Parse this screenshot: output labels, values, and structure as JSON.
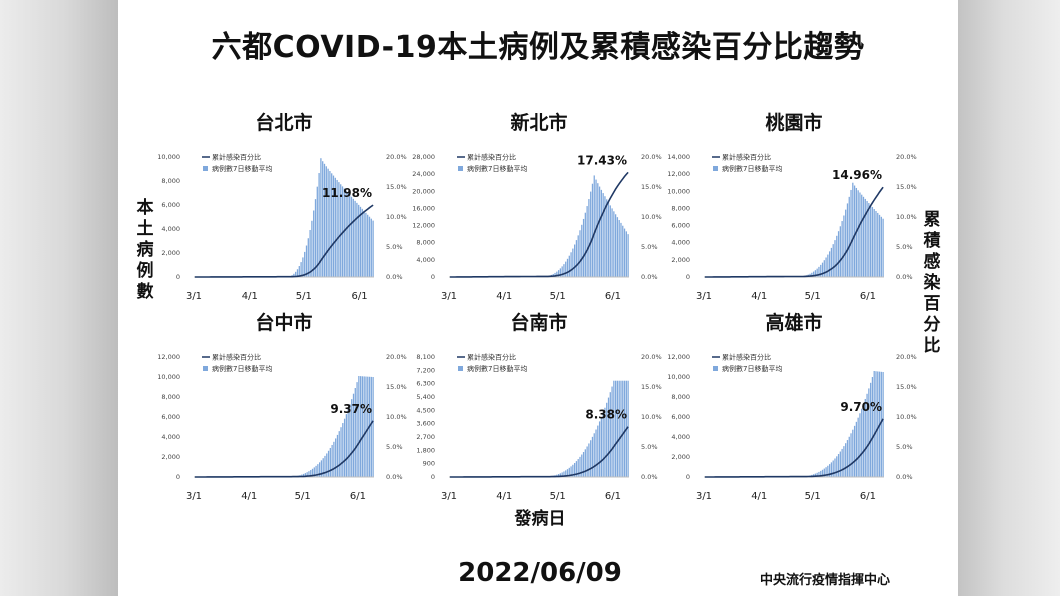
{
  "title": "六都COVID-19本土病例及累積感染百分比趨勢",
  "y_left_label": "本土病例數",
  "y_right_label": "累積感染百分比",
  "x_axis_label": "發病日",
  "date": "2022/06/09",
  "agency": "中央流行疫情指揮中心",
  "colors": {
    "bars": "#7fa8dc",
    "line": "#1f3864",
    "axis": "#bfbfbf"
  },
  "chart_data": [
    {
      "type": "bar",
      "name": "台北市",
      "legend": [
        "累計感染百分比",
        "病例數7日移動平均"
      ],
      "x_ticks": [
        "3/1",
        "4/1",
        "5/1",
        "6/1"
      ],
      "y_ticks": [
        "0",
        "2,000",
        "4,000",
        "6,000",
        "8,000",
        "10,000"
      ],
      "y_max": 10000,
      "y2_ticks": [
        "0.0%",
        "5.0%",
        "10.0%",
        "15.0%",
        "20.0%"
      ],
      "y2_max": 20,
      "final_percent": 11.98,
      "annotation": "11.98%",
      "bar_peak": 9900,
      "bar_peak_day": 70,
      "bar_end": 4700,
      "days": 100
    },
    {
      "type": "bar",
      "name": "新北市",
      "legend": [
        "累計感染百分比",
        "病例數7日移動平均"
      ],
      "x_ticks": [
        "3/1",
        "4/1",
        "5/1",
        "6/1"
      ],
      "y_ticks": [
        "0",
        "4,000",
        "8,000",
        "12,000",
        "16,000",
        "20,000",
        "24,000",
        "28,000"
      ],
      "y_max": 28000,
      "y2_ticks": [
        "0.0%",
        "5.0%",
        "10.0%",
        "15.0%",
        "20.0%"
      ],
      "y2_max": 20,
      "final_percent": 17.43,
      "annotation": "17.43%",
      "bar_peak": 23700,
      "bar_peak_day": 81,
      "bar_end": 10000,
      "days": 101
    },
    {
      "type": "bar",
      "name": "桃園市",
      "legend": [
        "累計感染百分比",
        "病例數7日移動平均"
      ],
      "x_ticks": [
        "3/1",
        "4/1",
        "5/1",
        "6/1"
      ],
      "y_ticks": [
        "0",
        "2,000",
        "4,000",
        "6,000",
        "8,000",
        "10,000",
        "12,000",
        "14,000"
      ],
      "y_max": 14000,
      "y2_ticks": [
        "0.0%",
        "5.0%",
        "10.0%",
        "15.0%",
        "20.0%"
      ],
      "y2_max": 20,
      "final_percent": 14.96,
      "annotation": "14.96%",
      "bar_peak": 11000,
      "bar_peak_day": 83,
      "bar_end": 6800,
      "days": 101
    },
    {
      "type": "bar",
      "name": "台中市",
      "legend": [
        "累計感染百分比",
        "病例數7日移動平均"
      ],
      "x_ticks": [
        "3/1",
        "4/1",
        "5/1",
        "6/1"
      ],
      "y_ticks": [
        "0",
        "2,000",
        "4,000",
        "6,000",
        "8,000",
        "10,000",
        "12,000"
      ],
      "y_max": 12000,
      "y2_ticks": [
        "0.0%",
        "5.0%",
        "10.0%",
        "15.0%",
        "20.0%"
      ],
      "y2_max": 20,
      "final_percent": 9.37,
      "annotation": "9.37%",
      "bar_peak": 10100,
      "bar_peak_day": 92,
      "bar_end": 10000,
      "days": 101
    },
    {
      "type": "bar",
      "name": "台南市",
      "legend": [
        "累計感染百分比",
        "病例數7日移動平均"
      ],
      "x_ticks": [
        "3/1",
        "4/1",
        "5/1",
        "6/1"
      ],
      "y_ticks": [
        "0",
        "900",
        "1,800",
        "2,700",
        "3,600",
        "4,500",
        "5,400",
        "6,300",
        "7,200",
        "8,100"
      ],
      "y_max": 8100,
      "y2_ticks": [
        "0.0%",
        "5.0%",
        "10.0%",
        "15.0%",
        "20.0%"
      ],
      "y2_max": 20,
      "final_percent": 8.38,
      "annotation": "8.38%",
      "bar_peak": 6500,
      "bar_peak_day": 92,
      "bar_end": 6500,
      "days": 101
    },
    {
      "type": "bar",
      "name": "高雄市",
      "legend": [
        "累計感染百分比",
        "病例數7日移動平均"
      ],
      "x_ticks": [
        "3/1",
        "4/1",
        "5/1",
        "6/1"
      ],
      "y_ticks": [
        "0",
        "2,000",
        "4,000",
        "6,000",
        "8,000",
        "10,000",
        "12,000"
      ],
      "y_max": 12000,
      "y2_ticks": [
        "0.0%",
        "5.0%",
        "10.0%",
        "15.0%",
        "20.0%"
      ],
      "y2_max": 20,
      "final_percent": 9.7,
      "annotation": "9.70%",
      "bar_peak": 10600,
      "bar_peak_day": 95,
      "bar_end": 10500,
      "days": 101
    }
  ]
}
